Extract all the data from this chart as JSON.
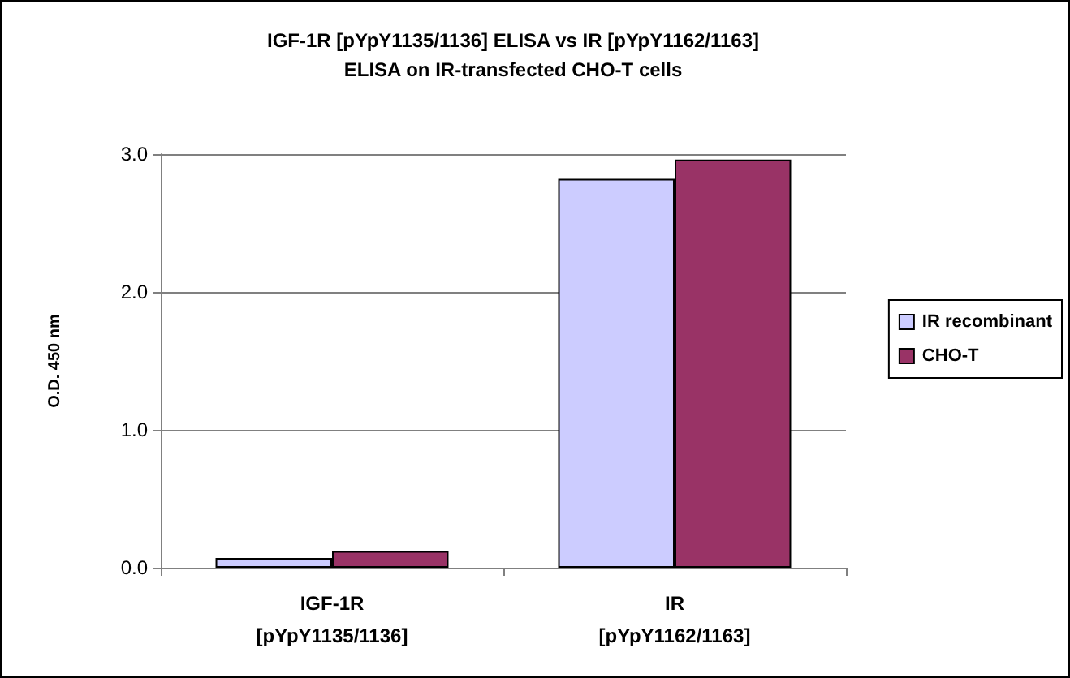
{
  "chart_data": {
    "type": "bar",
    "title": "IGF-1R [pYpY1135/1136] ELISA vs IR [pYpY1162/1163]\nELISA on IR-transfected CHO-T cells",
    "ylabel": "O.D. 450 nm",
    "categories": [
      "IGF-1R\n[pYpY1135/1136]",
      "IR\n[pYpY1162/1163]"
    ],
    "series": [
      {
        "name": "IR recombinant",
        "color": "#ccccff",
        "values": [
          0.07,
          2.82
        ]
      },
      {
        "name": "CHO-T",
        "color": "#993366",
        "values": [
          0.12,
          2.96
        ]
      }
    ],
    "ylim": [
      0,
      3
    ],
    "yticks": [
      {
        "value": 0,
        "label": "0.0"
      },
      {
        "value": 1,
        "label": "1.0"
      },
      {
        "value": 2,
        "label": "2.0"
      },
      {
        "value": 3,
        "label": "3.0"
      }
    ],
    "grid": "y",
    "legend": "right"
  }
}
